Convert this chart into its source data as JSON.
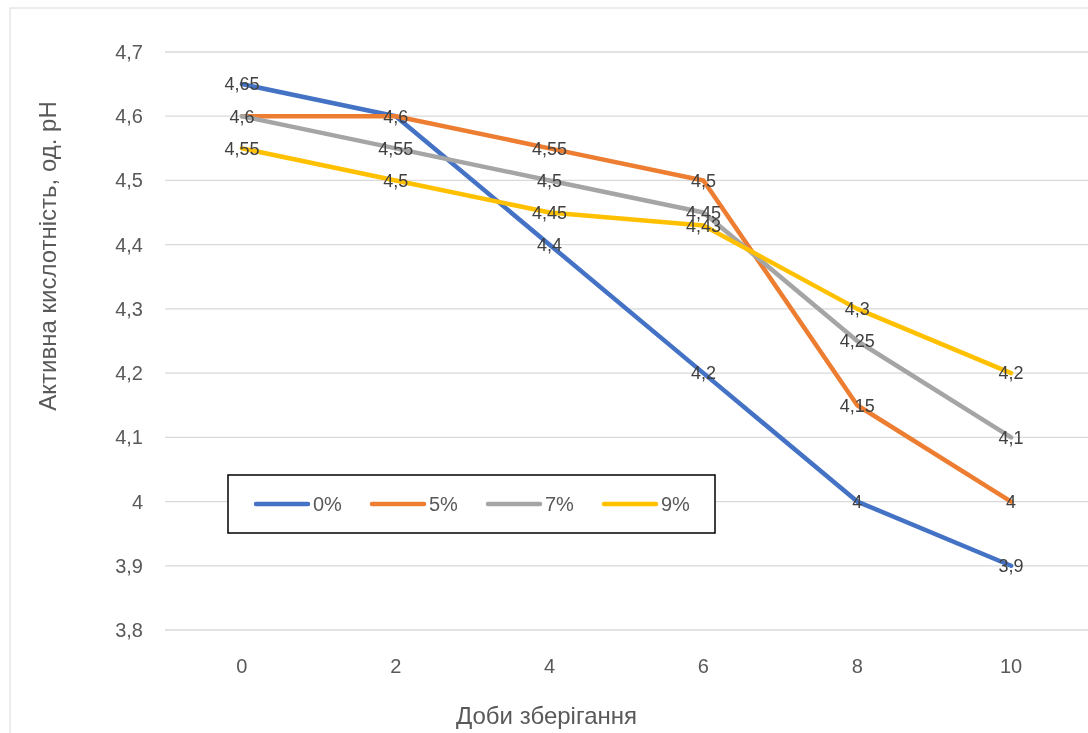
{
  "chart_data": {
    "type": "line",
    "xlabel": "Доби зберігання",
    "ylabel": "Активна кислотність, од. рН",
    "categories": [
      "0",
      "2",
      "4",
      "6",
      "8",
      "10"
    ],
    "series": [
      {
        "name": "0%",
        "color": "#4472c4",
        "values": [
          4.65,
          4.6,
          4.4,
          4.2,
          4,
          3.9
        ],
        "value_labels": [
          "4,65",
          "4,6",
          "4,4",
          "4,2",
          "4",
          "3,9"
        ]
      },
      {
        "name": "5%",
        "color": "#ed7d31",
        "values": [
          4.6,
          4.6,
          4.55,
          4.5,
          4.15,
          4
        ],
        "value_labels": [
          "4,6",
          null,
          "4,55",
          "4,5",
          "4,15",
          "4"
        ]
      },
      {
        "name": "7%",
        "color": "#a5a5a5",
        "values": [
          4.6,
          4.55,
          4.5,
          4.45,
          4.25,
          4.1
        ],
        "value_labels": [
          null,
          "4,55",
          "4,5",
          "4,45",
          "4,25",
          "4,1"
        ]
      },
      {
        "name": "9%",
        "color": "#ffc000",
        "values": [
          4.55,
          4.5,
          4.45,
          4.43,
          4.3,
          4.2
        ],
        "value_labels": [
          "4,55",
          "4,5",
          "4,45",
          "4,43",
          "4,3",
          "4,2"
        ]
      }
    ],
    "ylim": [
      3.8,
      4.7
    ],
    "yticks": [
      {
        "value": 3.8,
        "label": "3,8"
      },
      {
        "value": 3.9,
        "label": "3,9"
      },
      {
        "value": 4,
        "label": "4"
      },
      {
        "value": 4.1,
        "label": "4,1"
      },
      {
        "value": 4.2,
        "label": "4,2"
      },
      {
        "value": 4.3,
        "label": "4,3"
      },
      {
        "value": 4.4,
        "label": "4,4"
      },
      {
        "value": 4.5,
        "label": "4,5"
      },
      {
        "value": 4.6,
        "label": "4,6"
      },
      {
        "value": 4.7,
        "label": "4,7"
      }
    ],
    "grid": "y",
    "legend": "bottom left",
    "marker": "none",
    "line_style": "solid"
  }
}
